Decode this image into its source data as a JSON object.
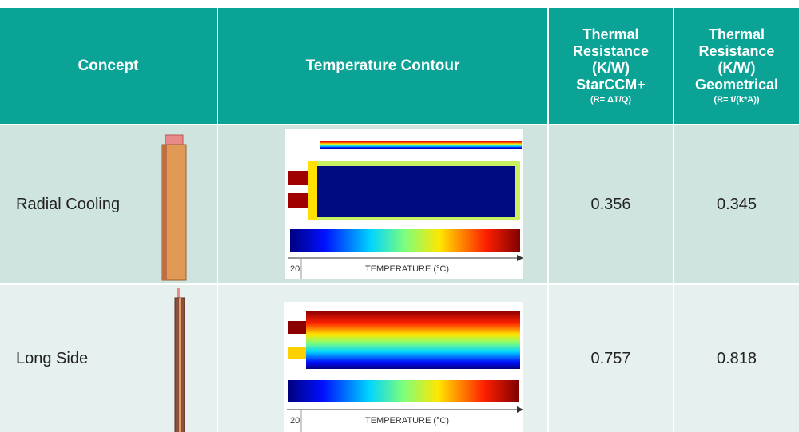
{
  "table": {
    "header": {
      "concept": "Concept",
      "contour": "Temperature Contour",
      "starccm": {
        "lines": [
          "Thermal",
          "Resistance",
          "(K/W)",
          "StarCCM+"
        ],
        "formula": "(R= ΔT/Q)"
      },
      "geometrical": {
        "lines": [
          "Thermal",
          "Resistance",
          "(K/W)",
          "Geometrical"
        ],
        "formula": "(R= t/(k*A))"
      }
    },
    "rows": [
      {
        "concept": "Radial Cooling",
        "scale_min": 20,
        "scale_label": "TEMPERATURE (°C)",
        "starccm": 0.356,
        "geometrical": 0.345
      },
      {
        "concept": "Long Side",
        "scale_min": 20,
        "scale_label": "TEMPERATURE (°C)",
        "starccm": 0.757,
        "geometrical": 0.818
      }
    ]
  }
}
